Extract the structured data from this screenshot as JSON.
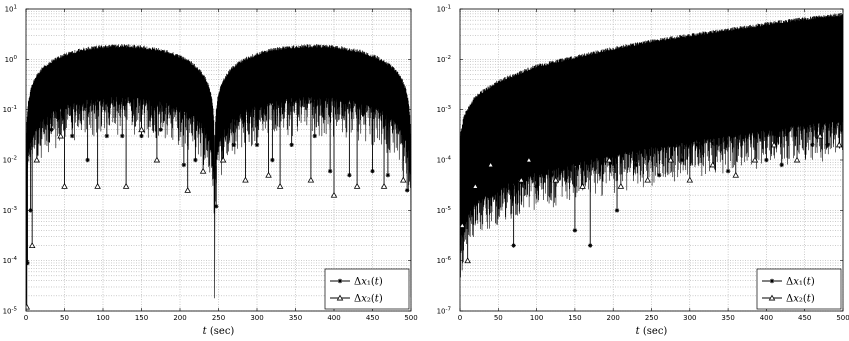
{
  "chart_data": [
    {
      "type": "line",
      "title": "",
      "xlabel": "t (sec)",
      "ylabel": "",
      "xlim": [
        0,
        500
      ],
      "ylim": [
        1e-05,
        10
      ],
      "yscale": "log",
      "grid": true,
      "legend_position": "bottom-right",
      "xticks": [
        "0",
        "50",
        "100",
        "150",
        "200",
        "250",
        "300",
        "350",
        "400",
        "450",
        "500"
      ],
      "yticks": [
        {
          "base": "10",
          "exp": "-5"
        },
        {
          "base": "10",
          "exp": "-4"
        },
        {
          "base": "10",
          "exp": "-3"
        },
        {
          "base": "10",
          "exp": "-2"
        },
        {
          "base": "10",
          "exp": "-1"
        },
        {
          "base": "10",
          "exp": "0"
        },
        {
          "base": "10",
          "exp": "1"
        }
      ],
      "series": [
        {
          "name": "Δx₁(t)",
          "marker": "star",
          "envelope_peaks_x": [
            0,
            120,
            245,
            365,
            500
          ],
          "envelope_max_y": 2.0,
          "dip_points": [
            [
              2,
              9e-05
            ],
            [
              6,
              0.001
            ],
            [
              33,
              0.04
            ],
            [
              60,
              0.03
            ],
            [
              80,
              0.01
            ],
            [
              105,
              0.03
            ],
            [
              125,
              0.03
            ],
            [
              150,
              0.03
            ],
            [
              175,
              0.04
            ],
            [
              205,
              0.008
            ],
            [
              220,
              0.01
            ],
            [
              247,
              0.0012
            ],
            [
              270,
              0.02
            ],
            [
              300,
              0.02
            ],
            [
              320,
              0.01
            ],
            [
              345,
              0.02
            ],
            [
              375,
              0.03
            ],
            [
              395,
              0.006
            ],
            [
              420,
              0.005
            ],
            [
              450,
              0.006
            ],
            [
              470,
              0.005
            ],
            [
              495,
              0.0025
            ]
          ]
        },
        {
          "name": "Δx₂(t)",
          "marker": "triangle",
          "envelope_peaks_x": [
            0,
            120,
            245,
            365,
            500
          ],
          "envelope_max_y": 2.0,
          "dip_points": [
            [
              1,
              1.2e-05
            ],
            [
              8,
              0.0002
            ],
            [
              14,
              0.01
            ],
            [
              45,
              0.03
            ],
            [
              50,
              0.003
            ],
            [
              93,
              0.003
            ],
            [
              130,
              0.003
            ],
            [
              150,
              0.04
            ],
            [
              170,
              0.01
            ],
            [
              210,
              0.0025
            ],
            [
              230,
              0.006
            ],
            [
              256,
              0.01
            ],
            [
              285,
              0.004
            ],
            [
              315,
              0.005
            ],
            [
              330,
              0.003
            ],
            [
              370,
              0.004
            ],
            [
              400,
              0.002
            ],
            [
              430,
              0.003
            ],
            [
              465,
              0.003
            ],
            [
              490,
              0.004
            ]
          ]
        }
      ]
    },
    {
      "type": "line",
      "title": "",
      "xlabel": "t (sec)",
      "ylabel": "",
      "xlim": [
        0,
        500
      ],
      "ylim": [
        1e-07,
        0.1
      ],
      "yscale": "log",
      "grid": true,
      "legend_position": "bottom-right",
      "xticks": [
        "0",
        "50",
        "100",
        "150",
        "200",
        "250",
        "300",
        "350",
        "400",
        "450",
        "500"
      ],
      "yticks": [
        {
          "base": "10",
          "exp": "-7"
        },
        {
          "base": "10",
          "exp": "-6"
        },
        {
          "base": "10",
          "exp": "-5"
        },
        {
          "base": "10",
          "exp": "-4"
        },
        {
          "base": "10",
          "exp": "-3"
        },
        {
          "base": "10",
          "exp": "-2"
        },
        {
          "base": "10",
          "exp": "-1"
        }
      ],
      "series": [
        {
          "name": "Δx₁(t)",
          "marker": "star",
          "envelope_upper": [
            [
              0,
              0.0003
            ],
            [
              5,
              0.0008
            ],
            [
              20,
              0.002
            ],
            [
              50,
              0.004
            ],
            [
              100,
              0.008
            ],
            [
              150,
              0.012
            ],
            [
              200,
              0.018
            ],
            [
              250,
              0.025
            ],
            [
              300,
              0.033
            ],
            [
              350,
              0.042
            ],
            [
              400,
              0.055
            ],
            [
              450,
              0.07
            ],
            [
              500,
              0.085
            ]
          ],
          "dip_points": [
            [
              5,
              0.0002
            ],
            [
              15,
              3e-05
            ],
            [
              30,
              6e-05
            ],
            [
              55,
              0.0001
            ],
            [
              70,
              2e-06
            ],
            [
              100,
              3e-05
            ],
            [
              120,
              5e-05
            ],
            [
              150,
              4e-06
            ],
            [
              170,
              2e-06
            ],
            [
              205,
              1e-05
            ],
            [
              230,
              8e-05
            ],
            [
              260,
              5e-05
            ],
            [
              290,
              0.0001
            ],
            [
              310,
              0.0002
            ],
            [
              350,
              6e-05
            ],
            [
              400,
              0.0001
            ],
            [
              420,
              8e-05
            ],
            [
              460,
              0.0002
            ],
            [
              480,
              0.0002
            ]
          ]
        },
        {
          "name": "Δx₂(t)",
          "marker": "triangle",
          "envelope_upper": [
            [
              0,
              0.0003
            ],
            [
              5,
              0.0008
            ],
            [
              20,
              0.002
            ],
            [
              50,
              0.004
            ],
            [
              100,
              0.008
            ],
            [
              150,
              0.012
            ],
            [
              200,
              0.018
            ],
            [
              250,
              0.025
            ],
            [
              300,
              0.033
            ],
            [
              350,
              0.042
            ],
            [
              400,
              0.055
            ],
            [
              450,
              0.07
            ],
            [
              500,
              0.085
            ]
          ],
          "dip_points": [
            [
              3,
              5e-06
            ],
            [
              10,
              1e-06
            ],
            [
              20,
              3e-05
            ],
            [
              40,
              8e-05
            ],
            [
              80,
              4e-05
            ],
            [
              90,
              0.0001
            ],
            [
              125,
              4e-05
            ],
            [
              160,
              3e-05
            ],
            [
              195,
              0.0001
            ],
            [
              210,
              3e-05
            ],
            [
              245,
              4e-05
            ],
            [
              275,
              0.0001
            ],
            [
              300,
              4e-05
            ],
            [
              330,
              8e-05
            ],
            [
              360,
              5e-05
            ],
            [
              385,
              0.0001
            ],
            [
              410,
              0.0002
            ],
            [
              440,
              0.0001
            ],
            [
              470,
              0.0003
            ],
            [
              495,
              0.0002
            ]
          ]
        }
      ]
    }
  ]
}
